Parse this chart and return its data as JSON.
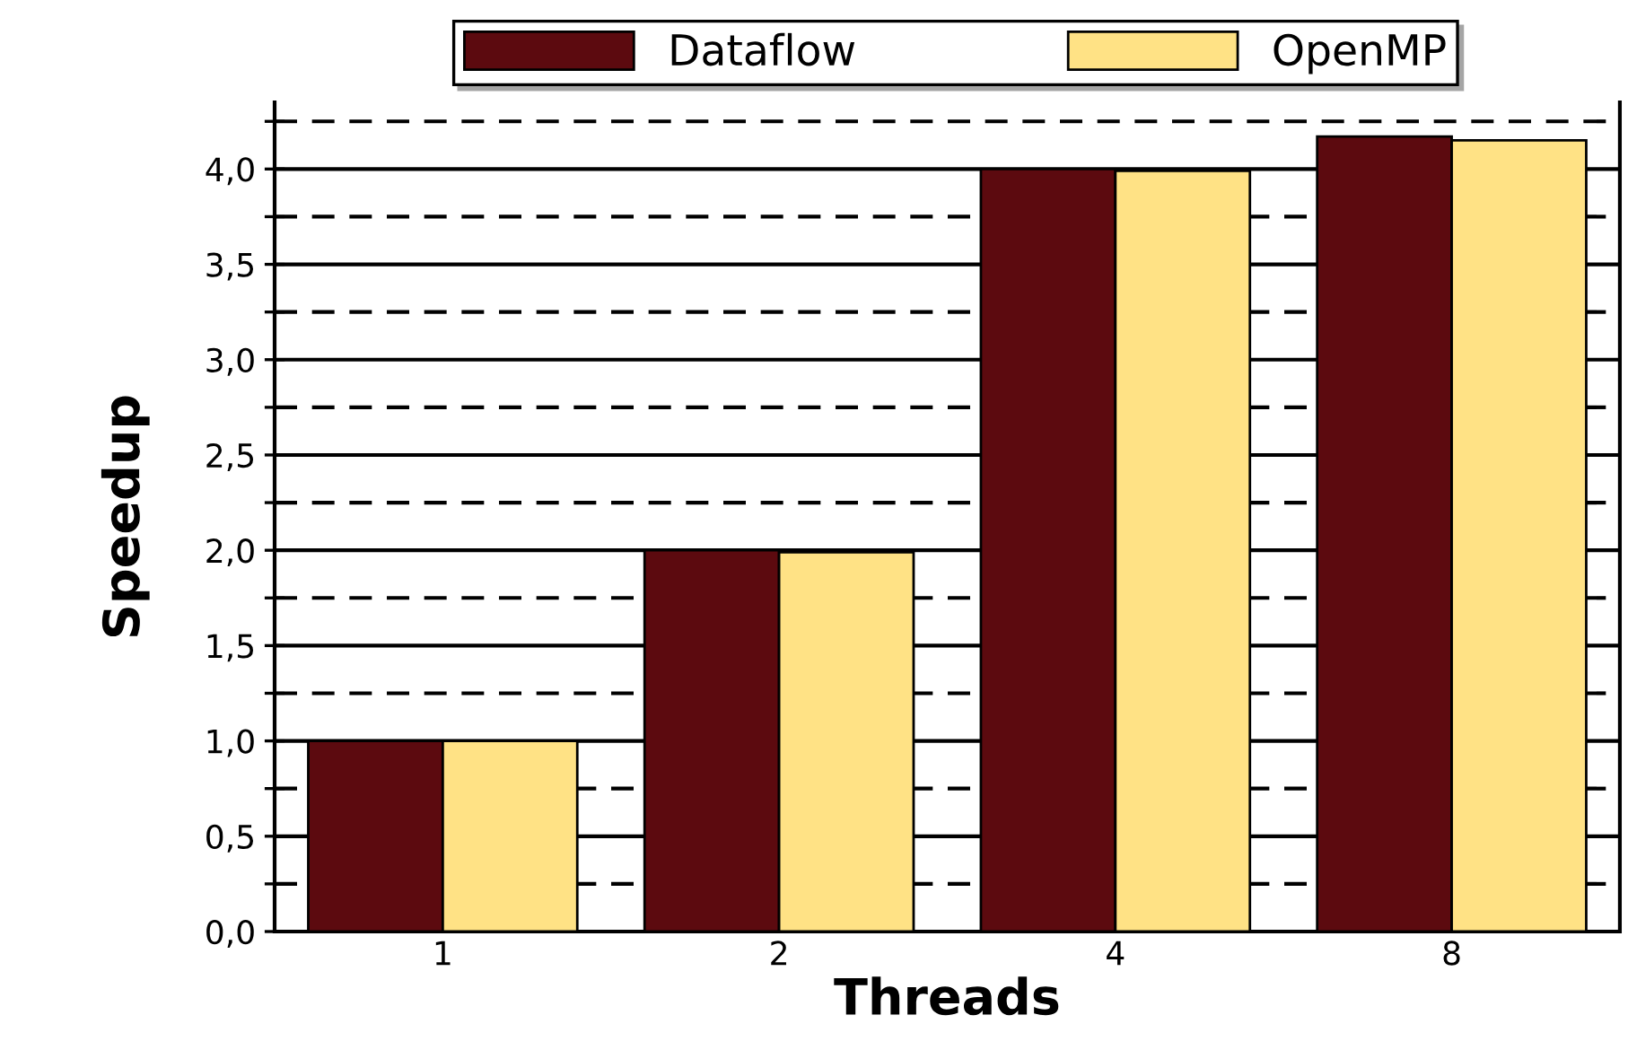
{
  "chart_data": {
    "type": "bar",
    "xlabel": "Threads",
    "ylabel": "Speedup",
    "categories": [
      "1",
      "2",
      "4",
      "8"
    ],
    "series": [
      {
        "name": "Dataflow",
        "color": "#5c0a0f",
        "values": [
          1.0,
          2.0,
          4.0,
          4.17
        ]
      },
      {
        "name": "OpenMP",
        "color": "#ffe285",
        "values": [
          1.0,
          1.99,
          3.99,
          4.15
        ]
      }
    ],
    "ylim": [
      0,
      4.35
    ],
    "yticks": [
      {
        "value": 0,
        "label": "0,0"
      },
      {
        "value": 0.25,
        "label": null
      },
      {
        "value": 0.5,
        "label": "0,5"
      },
      {
        "value": 0.75,
        "label": null
      },
      {
        "value": 1,
        "label": "1,0"
      },
      {
        "value": 1.25,
        "label": null
      },
      {
        "value": 1.5,
        "label": "1,5"
      },
      {
        "value": 1.75,
        "label": null
      },
      {
        "value": 2,
        "label": "2,0"
      },
      {
        "value": 2.25,
        "label": null
      },
      {
        "value": 2.5,
        "label": "2,5"
      },
      {
        "value": 2.75,
        "label": null
      },
      {
        "value": 3,
        "label": "3,0"
      },
      {
        "value": 3.25,
        "label": null
      },
      {
        "value": 3.5,
        "label": "3,5"
      },
      {
        "value": 3.75,
        "label": null
      },
      {
        "value": 4,
        "label": "4,0"
      },
      {
        "value": 4.25,
        "label": null
      }
    ],
    "grid": "y",
    "legend": "top"
  }
}
